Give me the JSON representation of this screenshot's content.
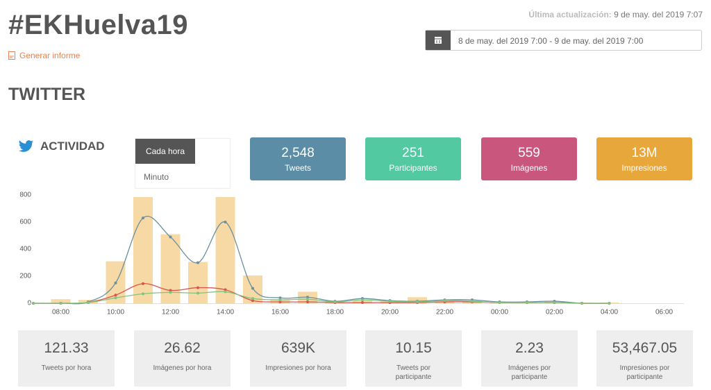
{
  "header": {
    "title": "#EKHuelva19",
    "report_link": "Generar informe",
    "last_update_label": "Última actualización:",
    "last_update_value": "9 de may. del 2019 7:07",
    "date_range": "8 de may. del 2019 7:00 - 9 de may. del 2019 7:00"
  },
  "section_title": "TWITTER",
  "activity": {
    "title": "ACTIVIDAD",
    "toggle": [
      "Cada hora",
      "Minuto"
    ]
  },
  "kpis": [
    {
      "value": "2,548",
      "label": "Tweets",
      "color": "#5b8ea6"
    },
    {
      "value": "251",
      "label": "Participantes",
      "color": "#52c9a0"
    },
    {
      "value": "559",
      "label": "Imágenes",
      "color": "#c9577d"
    },
    {
      "value": "13M",
      "label": "Impresiones",
      "color": "#e8a73a"
    }
  ],
  "chart_data": {
    "type": "bar-line",
    "categories": [
      null,
      "08:00",
      null,
      "10:00",
      null,
      "12:00",
      null,
      "14:00",
      null,
      "16:00",
      null,
      "18:00",
      null,
      "20:00",
      null,
      "22:00",
      null,
      "00:00",
      null,
      "02:00",
      null,
      "04:00",
      null,
      "06:00"
    ],
    "ylim": [
      0,
      800
    ],
    "yticks": [
      0,
      200,
      400,
      600,
      800
    ],
    "series": [
      {
        "kind": "bar",
        "color": "#f6d9a4",
        "values": [
          0,
          30,
          25,
          310,
          785,
          510,
          305,
          785,
          205,
          30,
          85,
          15,
          20,
          15,
          45,
          25,
          20,
          10,
          10,
          15,
          5,
          5,
          null,
          null
        ]
      },
      {
        "kind": "line",
        "color": "#6a8fa0",
        "values": [
          0,
          0,
          10,
          150,
          630,
          490,
          300,
          600,
          110,
          40,
          45,
          15,
          35,
          20,
          15,
          25,
          25,
          10,
          10,
          15,
          0,
          0,
          null,
          null
        ]
      },
      {
        "kind": "line",
        "color": "#d9534f",
        "values": [
          0,
          0,
          5,
          60,
          145,
          95,
          115,
          100,
          20,
          10,
          10,
          5,
          5,
          5,
          5,
          10,
          10,
          5,
          5,
          5,
          0,
          0,
          null,
          null
        ]
      },
      {
        "kind": "line",
        "color": "#80c47f",
        "values": [
          0,
          0,
          5,
          40,
          70,
          80,
          75,
          85,
          35,
          25,
          30,
          10,
          25,
          15,
          10,
          20,
          15,
          5,
          5,
          5,
          0,
          0,
          null,
          null
        ]
      }
    ]
  },
  "stats": [
    {
      "value": "121.33",
      "label": "Tweets por hora"
    },
    {
      "value": "26.62",
      "label": "Imágenes por hora"
    },
    {
      "value": "639K",
      "label": "Impresiones por hora"
    },
    {
      "value": "10.15",
      "label": "Tweets por participante"
    },
    {
      "value": "2.23",
      "label": "Imágenes por participante"
    },
    {
      "value": "53,467.05",
      "label": "Impresiones por participante"
    }
  ]
}
